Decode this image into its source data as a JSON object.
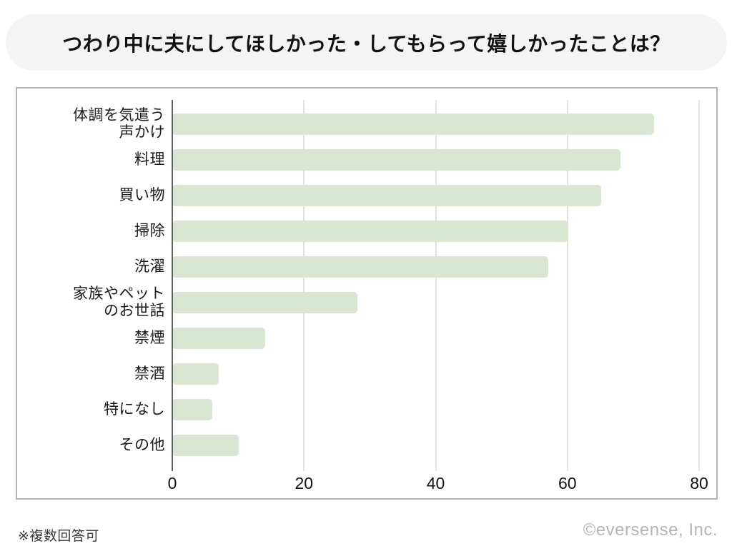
{
  "title": "つわり中に夫にしてほしかった・してもらって嬉しかったことは？",
  "footnote": "※複数回答可",
  "copyright": "©eversense, Inc.",
  "colors": {
    "bar_fill": "#d9e7d2",
    "title_pill_bg": "#f4f4f5",
    "panel_border": "#b3b3b3",
    "axis_line": "#616161",
    "gridline": "#e1e1e1",
    "copyright_text": "#b5b5b5"
  },
  "chart_data": {
    "type": "bar",
    "orientation": "horizontal",
    "title": "つわり中に夫にしてほしかった・してもらって嬉しかったことは？",
    "categories": [
      "体調を気遣う声かけ",
      "料理",
      "買い物",
      "掃除",
      "洗濯",
      "家族やペットのお世話",
      "禁煙",
      "禁酒",
      "特になし",
      "その他"
    ],
    "category_lines": [
      [
        "体調を気遣う",
        "声かけ"
      ],
      [
        "料理"
      ],
      [
        "買い物"
      ],
      [
        "掃除"
      ],
      [
        "洗濯"
      ],
      [
        "家族やペット",
        "のお世話"
      ],
      [
        "禁煙"
      ],
      [
        "禁酒"
      ],
      [
        "特になし"
      ],
      [
        "その他"
      ]
    ],
    "values": [
      73,
      68,
      65,
      60,
      57,
      28,
      14,
      7,
      6,
      10
    ],
    "x_ticks": [
      0,
      20,
      40,
      60,
      80
    ],
    "xlim": [
      0,
      82.6
    ],
    "xlabel": "",
    "ylabel": "",
    "grid": true,
    "legend": false,
    "note": "複数回答可 (multiple answers allowed)"
  }
}
